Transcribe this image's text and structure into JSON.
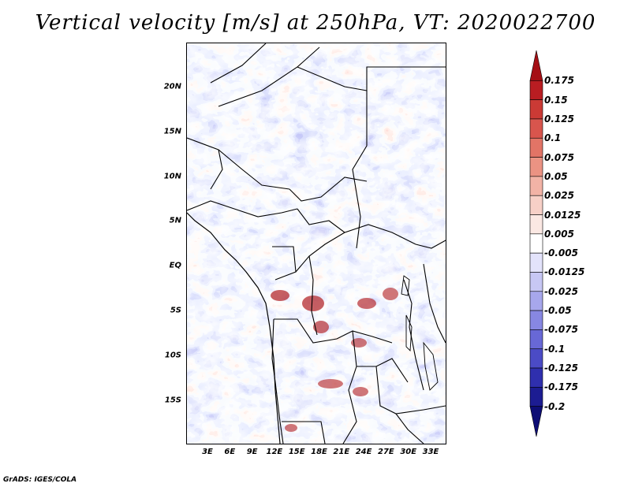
{
  "title": "Vertical velocity [m/s] at 250hPa, VT: 2020022700",
  "credit": "GrADS: IGES/COLA",
  "map": {
    "region": "Central Africa",
    "lat_ticks": [
      "20N",
      "15N",
      "10N",
      "5N",
      "EQ",
      "5S",
      "10S",
      "15S"
    ],
    "lon_ticks": [
      "3E",
      "6E",
      "9E",
      "12E",
      "15E",
      "18E",
      "21E",
      "24E",
      "27E",
      "30E",
      "33E"
    ]
  },
  "colorbar": {
    "labels": [
      "0.175",
      "0.15",
      "0.125",
      "0.1",
      "0.075",
      "0.05",
      "0.025",
      "0.0125",
      "0.005",
      "-0.005",
      "-0.0125",
      "-0.025",
      "-0.05",
      "-0.075",
      "-0.1",
      "-0.125",
      "-0.175",
      "-0.2"
    ],
    "colors": [
      "#a50f15",
      "#b91d22",
      "#cb3a35",
      "#d8554d",
      "#e27466",
      "#eb9383",
      "#f2b3a6",
      "#f7d0c7",
      "#fbe8e3",
      "#ffffff",
      "#e3e3fb",
      "#c7c7f4",
      "#a7a7ec",
      "#8787e2",
      "#6868d6",
      "#4b4bc6",
      "#2f2fae",
      "#1c1c92",
      "#0d0d75"
    ]
  }
}
